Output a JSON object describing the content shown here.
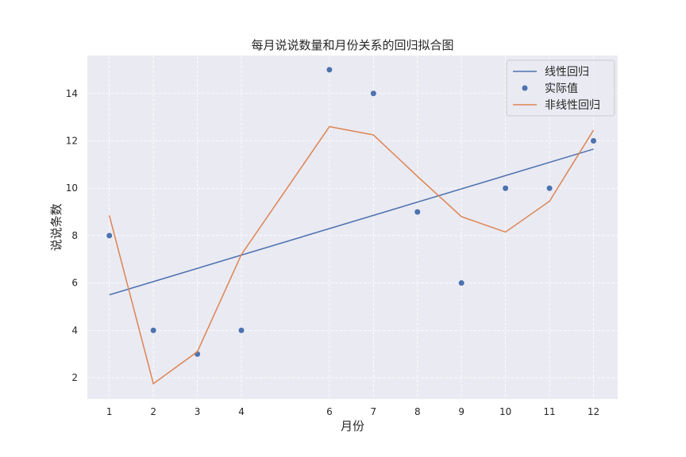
{
  "chart_data": {
    "type": "line",
    "title": "每月说说数量和月份关系的回归拟合图",
    "xlabel": "月份",
    "ylabel": "说说条数",
    "xlim": [
      0.5,
      12.55
    ],
    "ylim": [
      1.1,
      15.6
    ],
    "x_ticks": [
      1,
      2,
      3,
      4,
      6,
      7,
      8,
      9,
      10,
      11,
      12
    ],
    "y_ticks": [
      2,
      4,
      6,
      8,
      10,
      12,
      14
    ],
    "grid": true,
    "legend_position": "top-right",
    "series": [
      {
        "name": "线性回归",
        "kind": "line",
        "color": "#4c72b0",
        "x": [
          1,
          12
        ],
        "y": [
          5.5,
          11.65
        ]
      },
      {
        "name": "实际值",
        "kind": "scatter",
        "color": "#4c72b0",
        "x": [
          1,
          2,
          3,
          4,
          6,
          7,
          8,
          9,
          10,
          11,
          12
        ],
        "y": [
          8,
          4,
          3,
          4,
          15,
          14,
          9,
          6,
          10,
          10,
          12
        ]
      },
      {
        "name": "非线性回归",
        "kind": "line",
        "color": "#dd8452",
        "x": [
          1,
          2,
          3,
          4,
          6,
          7,
          8,
          9,
          10,
          11,
          12
        ],
        "y": [
          8.85,
          1.75,
          3.1,
          7.2,
          12.6,
          12.25,
          10.5,
          8.8,
          8.15,
          9.45,
          12.45
        ]
      }
    ]
  }
}
